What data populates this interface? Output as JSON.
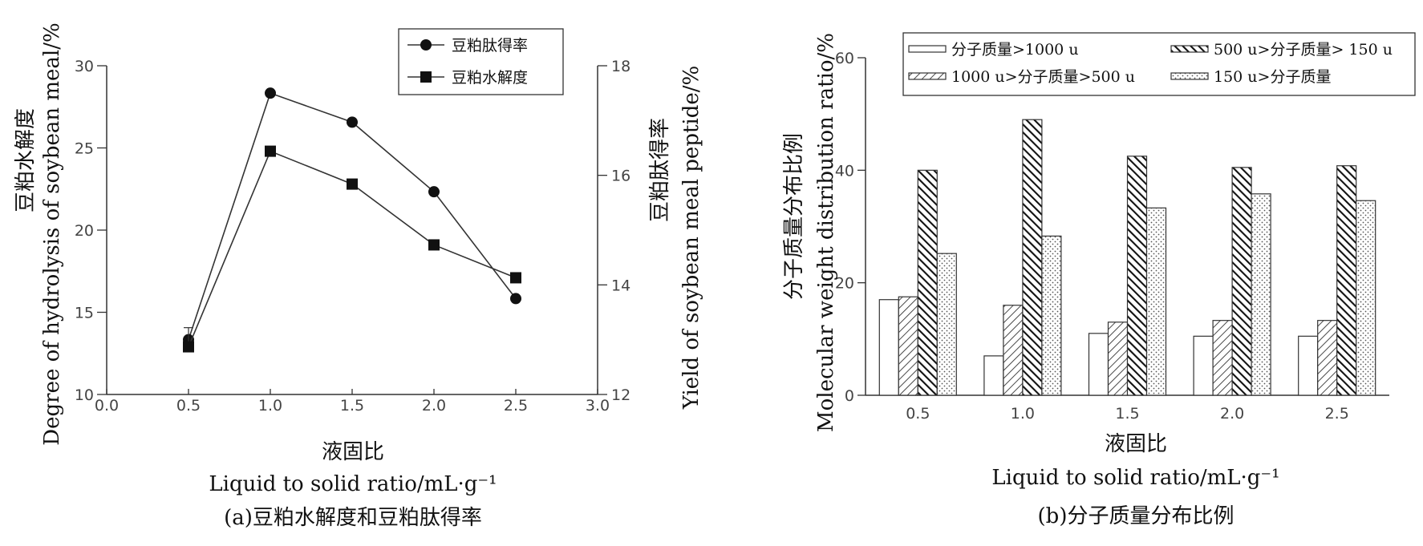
{
  "chart_data": [
    {
      "type": "line",
      "panel_caption": "(a)豆粕水解度和豆粕肽得率",
      "xlabel_cn": "液固比",
      "xlabel_en": "Liquid to solid ratio/mL·g⁻¹",
      "ylabel_left_cn": "豆粕水解度",
      "ylabel_left_en": "Degree of hydrolysis of soybean meal/%",
      "ylabel_right_cn": "豆粕肽得率",
      "ylabel_right_en": "Yield of soybean meal peptide/%",
      "xlim": [
        0.0,
        3.0
      ],
      "xticks": [
        "0.0",
        "0.5",
        "1.0",
        "1.5",
        "2.0",
        "2.5",
        "3.0"
      ],
      "ylim_left": [
        10,
        30
      ],
      "yticks_left": [
        "10",
        "15",
        "20",
        "25",
        "30"
      ],
      "ylim_right": [
        12,
        18
      ],
      "yticks_right": [
        "12",
        "14",
        "16",
        "18"
      ],
      "legend_position": "top-right",
      "series": [
        {
          "name": "豆粕肽得率",
          "marker": "circle",
          "axis": "right",
          "x": [
            0.5,
            1.0,
            1.5,
            2.0,
            2.5
          ],
          "y": [
            13.0,
            17.5,
            16.97,
            15.7,
            13.75
          ]
        },
        {
          "name": "豆粕水解度",
          "marker": "square",
          "axis": "left",
          "x": [
            0.5,
            1.0,
            1.5,
            2.0,
            2.5
          ],
          "y": [
            12.9,
            24.8,
            22.8,
            19.1,
            17.1
          ]
        }
      ]
    },
    {
      "type": "bar",
      "panel_caption": "(b)分子质量分布比例",
      "xlabel_cn": "液固比",
      "xlabel_en": "Liquid to solid ratio/mL·g⁻¹",
      "ylabel_cn": "分子质量分布比例",
      "ylabel_en": "Molecular weight distribution ratio/%",
      "categories": [
        "0.5",
        "1.0",
        "1.5",
        "2.0",
        "2.5"
      ],
      "ylim": [
        0,
        60
      ],
      "yticks": [
        "0",
        "20",
        "40",
        "60"
      ],
      "legend_position": "top",
      "series": [
        {
          "name": "分子质量>1000 u",
          "pattern": "white",
          "values": [
            17,
            7,
            11,
            10.5,
            10.5
          ]
        },
        {
          "name": "1000 u>分子质量>500 u",
          "pattern": "light-hatch",
          "values": [
            17.5,
            16,
            13,
            13.3,
            13.3
          ]
        },
        {
          "name": "500 u>分子质量> 150 u",
          "pattern": "dark-hatch",
          "values": [
            40,
            49,
            42.5,
            40.5,
            40.8
          ]
        },
        {
          "name": "150 u>分子质量",
          "pattern": "dots",
          "values": [
            25.2,
            28.3,
            33.3,
            35.8,
            34.6
          ]
        }
      ]
    }
  ]
}
